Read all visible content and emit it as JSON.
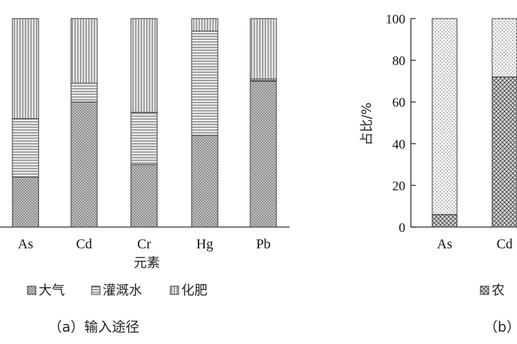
{
  "chart_data": [
    {
      "type": "bar",
      "stacked": true,
      "caption": "（a）输入途径",
      "xlabel": "元素",
      "ylabel": "",
      "ylim": [
        0,
        100
      ],
      "categories": [
        "As",
        "Cd",
        "Cr",
        "Hg",
        "Pb"
      ],
      "series": [
        {
          "name": "大气",
          "values": [
            24,
            60,
            30,
            44,
            70
          ]
        },
        {
          "name": "灌溉水",
          "values": [
            28,
            9,
            25,
            50,
            1
          ]
        },
        {
          "name": "化肥",
          "values": [
            48,
            31,
            45,
            6,
            29
          ]
        }
      ],
      "patterns": [
        "dots",
        "hlines",
        "vlines"
      ],
      "legend_position": "bottom",
      "grid": false
    },
    {
      "type": "bar",
      "stacked": true,
      "caption": "（b）",
      "xlabel": "",
      "ylabel": "占比/%",
      "ylim": [
        0,
        100
      ],
      "yticks": [
        0,
        20,
        40,
        60,
        80,
        100
      ],
      "categories": [
        "As",
        "Cd"
      ],
      "series": [
        {
          "name": "农",
          "values": [
            6,
            72
          ]
        },
        {
          "name": "",
          "values": [
            94,
            28
          ]
        }
      ],
      "patterns": [
        "crosshatch",
        "lightdots"
      ],
      "legend_position": "bottom",
      "grid": false,
      "cropped_right": true
    }
  ]
}
